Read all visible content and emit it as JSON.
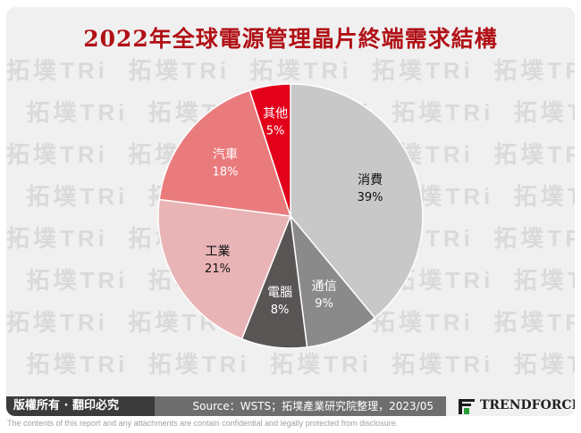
{
  "chart_data": {
    "type": "pie",
    "title": "2022年全球電源管理晶片終端需求結構",
    "slices": [
      {
        "label": "消費",
        "value": 39,
        "value_label": "39%",
        "color": "#c8c8c8",
        "text_color": "#111111"
      },
      {
        "label": "通信",
        "value": 9,
        "value_label": "9%",
        "color": "#8a8a8a",
        "text_color": "#ffffff"
      },
      {
        "label": "電腦",
        "value": 8,
        "value_label": "8%",
        "color": "#5a5555",
        "text_color": "#ffffff"
      },
      {
        "label": "工業",
        "value": 21,
        "value_label": "21%",
        "color": "#e8b4b6",
        "text_color": "#111111"
      },
      {
        "label": "汽車",
        "value": 18,
        "value_label": "18%",
        "color": "#ea7b7d",
        "text_color": "#ffffff"
      },
      {
        "label": "其他",
        "value": 5,
        "value_label": "5%",
        "color": "#e3001b",
        "text_color": "#ffffff"
      }
    ]
  },
  "footer": {
    "rights": "版權所有 · 翻印必究",
    "source": "Source：WSTS；拓墣產業研究院整理，2023/05",
    "logo": "TRENDFORCE"
  },
  "disclaimer": "The contents of this report and any attachments are contain confidential and legally protected from disclosure.",
  "colors": {
    "title": "#b11016",
    "accent": "#e3001b"
  }
}
